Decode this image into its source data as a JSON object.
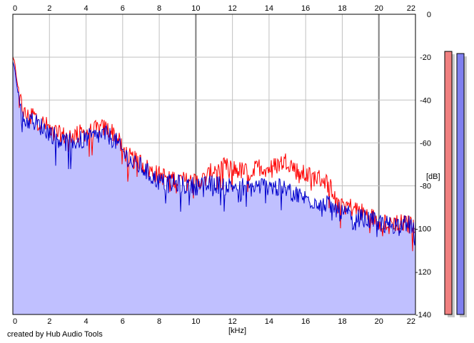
{
  "chart_data": {
    "type": "area",
    "title": "",
    "xlabel": "[kHz]",
    "ylabel": "[dB]",
    "xlim": [
      0,
      22
    ],
    "ylim": [
      -140,
      0
    ],
    "x_ticks": [
      "0",
      "2",
      "4",
      "6",
      "8",
      "10",
      "12",
      "14",
      "16",
      "18",
      "20",
      "22"
    ],
    "y_ticks": [
      "0",
      "-20",
      "-40",
      "-60",
      "-80",
      "-100",
      "-120",
      "-140"
    ],
    "grid": true,
    "legend": "none",
    "series": [
      {
        "color": "#ff0000",
        "x": [
          0,
          0.1,
          0.2,
          0.4,
          0.6,
          0.8,
          1.0,
          1.5,
          2.0,
          2.5,
          3.0,
          3.5,
          4.0,
          4.5,
          5.0,
          5.3,
          5.6,
          6.0,
          6.3,
          6.6,
          7.0,
          7.5,
          8.0,
          8.5,
          9.0,
          9.5,
          10.0,
          10.5,
          11.0,
          11.5,
          12.0,
          12.5,
          13.0,
          13.5,
          14.0,
          14.5,
          15.0,
          15.5,
          16.0,
          16.5,
          17.0,
          17.5,
          18.0,
          18.5,
          19.0,
          19.5,
          20.0,
          20.5,
          21.0,
          21.5,
          22.0
        ],
        "y": [
          -20,
          -22,
          -30,
          -40,
          -46,
          -48,
          -46,
          -50,
          -53,
          -56,
          -57,
          -56,
          -55,
          -54,
          -53,
          -54,
          -56,
          -63,
          -66,
          -68,
          -69,
          -73,
          -75,
          -76,
          -77,
          -78,
          -78,
          -77,
          -72,
          -71,
          -72,
          -73,
          -74,
          -71,
          -72,
          -70,
          -68,
          -73,
          -75,
          -76,
          -77,
          -82,
          -88,
          -90,
          -92,
          -94,
          -96,
          -97,
          -97,
          -98,
          -98
        ]
      },
      {
        "color": "#0000cc",
        "x": [
          0,
          0.1,
          0.2,
          0.4,
          0.6,
          0.8,
          1.0,
          1.5,
          2.0,
          2.5,
          3.0,
          3.5,
          4.0,
          4.5,
          5.0,
          5.3,
          5.6,
          6.0,
          6.3,
          6.6,
          7.0,
          7.5,
          8.0,
          8.5,
          9.0,
          9.5,
          10.0,
          10.5,
          11.0,
          11.5,
          12.0,
          12.5,
          13.0,
          13.5,
          14.0,
          14.5,
          15.0,
          15.5,
          16.0,
          16.5,
          17.0,
          17.5,
          18.0,
          18.5,
          19.0,
          19.5,
          20.0,
          20.5,
          21.0,
          21.5,
          22.0
        ],
        "y": [
          -22,
          -25,
          -32,
          -44,
          -49,
          -50,
          -49,
          -52,
          -55,
          -58,
          -60,
          -59,
          -58,
          -57,
          -56,
          -57,
          -59,
          -64,
          -67,
          -70,
          -71,
          -75,
          -78,
          -79,
          -79,
          -80,
          -80,
          -80,
          -79,
          -80,
          -80,
          -80,
          -81,
          -80,
          -80,
          -81,
          -82,
          -84,
          -86,
          -87,
          -88,
          -90,
          -93,
          -94,
          -95,
          -96,
          -97,
          -98,
          -98,
          -98,
          -99
        ]
      }
    ],
    "level_meters": [
      {
        "color": "#f08080",
        "value_db": -10
      },
      {
        "color": "#8080f0",
        "value_db": -11
      }
    ]
  },
  "footer": {
    "credit": "created by Hub Audio Tools"
  }
}
